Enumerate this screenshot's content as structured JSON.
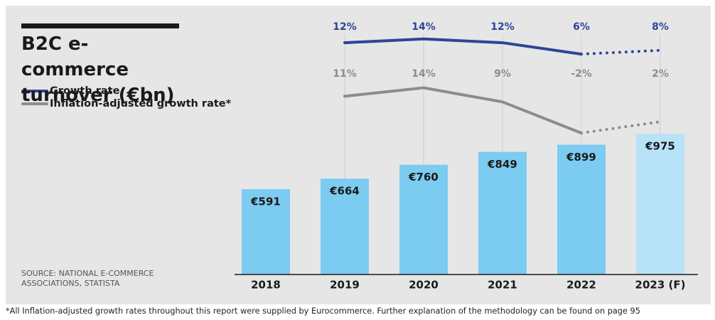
{
  "chart_data": {
    "type": "bar",
    "title": "B2C e-commerce turnover (€bn)",
    "source": "SOURCE: NATIONAL E-COMMERCE ASSOCIATIONS, STATISTA",
    "footnote": "*All Inflation-adjusted growth rates throughout this report were supplied by Eurocommerce. Further explanation of the methodology can be found on page 95",
    "categories": [
      "2018",
      "2019",
      "2020",
      "2021",
      "2022",
      "2023 (F)"
    ],
    "values": [
      591,
      664,
      760,
      849,
      899,
      975
    ],
    "value_labels": [
      "€591",
      "€664",
      "€760",
      "€849",
      "€899",
      "€975"
    ],
    "color": "#7ccbf1",
    "forecast_color": "#b8e2f7",
    "forecast_index": 5,
    "ylim": [
      0,
      1000
    ],
    "series": [
      {
        "name": "Growth rate",
        "type": "line",
        "color": "#2e4596",
        "values": [
          null,
          12,
          14,
          12,
          6,
          8
        ],
        "value_labels": [
          null,
          "12%",
          "14%",
          "12%",
          "6%",
          "8%"
        ],
        "ylim": [
          -110,
          27
        ]
      },
      {
        "name": "Inflation-adjusted growth rate*",
        "type": "line",
        "color": "#8c8c8c",
        "values": [
          null,
          11,
          14,
          9,
          -2,
          2
        ],
        "value_labels": [
          null,
          "11%",
          "14%",
          "9%",
          "-2%",
          "2%"
        ],
        "ylim": [
          -52,
          40
        ]
      }
    ]
  }
}
